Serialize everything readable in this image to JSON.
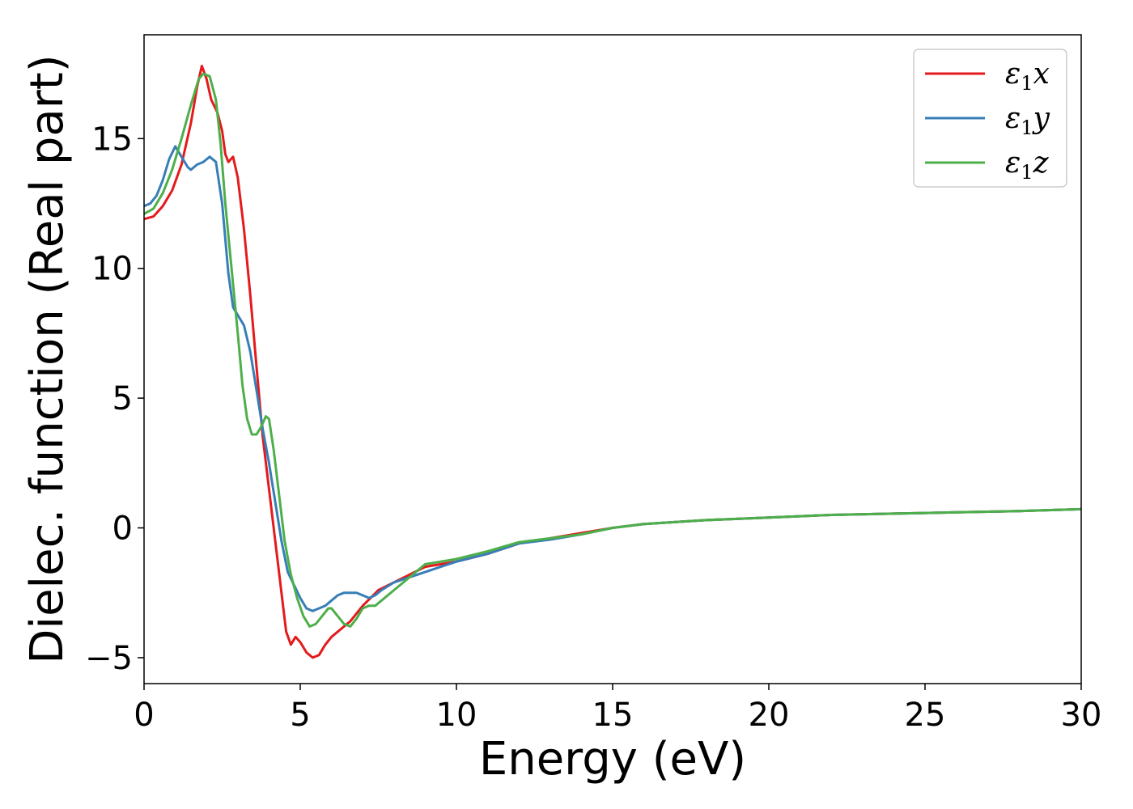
{
  "chart_data": {
    "type": "line",
    "xlabel": "Energy (eV)",
    "ylabel": "Dielec. function (Real part)",
    "xlim": [
      0,
      30
    ],
    "ylim": [
      -6,
      19
    ],
    "xticks": [
      0,
      5,
      10,
      15,
      20,
      25,
      30
    ],
    "yticks": [
      -5,
      0,
      5,
      10,
      15
    ],
    "xtick_labels": [
      "0",
      "5",
      "10",
      "15",
      "20",
      "25",
      "30"
    ],
    "ytick_labels": [
      "−5",
      "0",
      "5",
      "10",
      "15"
    ],
    "grid": false,
    "legend_position": "top-right",
    "series": [
      {
        "name": "ε₁x",
        "legend_base": "ε",
        "legend_sub": "1",
        "legend_tail": "x",
        "color": "#e41a1c",
        "points": [
          [
            0,
            11.9
          ],
          [
            0.3,
            12.0
          ],
          [
            0.6,
            12.4
          ],
          [
            0.9,
            13.0
          ],
          [
            1.2,
            14.0
          ],
          [
            1.5,
            15.6
          ],
          [
            1.7,
            17.0
          ],
          [
            1.85,
            17.8
          ],
          [
            2.0,
            17.3
          ],
          [
            2.15,
            16.5
          ],
          [
            2.35,
            16.0
          ],
          [
            2.5,
            15.3
          ],
          [
            2.6,
            14.4
          ],
          [
            2.7,
            14.1
          ],
          [
            2.85,
            14.3
          ],
          [
            3.0,
            13.5
          ],
          [
            3.2,
            11.5
          ],
          [
            3.4,
            9.0
          ],
          [
            3.6,
            6.2
          ],
          [
            3.8,
            3.5
          ],
          [
            4.0,
            1.5
          ],
          [
            4.2,
            -0.5
          ],
          [
            4.4,
            -2.5
          ],
          [
            4.55,
            -4.0
          ],
          [
            4.7,
            -4.5
          ],
          [
            4.85,
            -4.2
          ],
          [
            5.0,
            -4.4
          ],
          [
            5.2,
            -4.8
          ],
          [
            5.4,
            -5.0
          ],
          [
            5.6,
            -4.9
          ],
          [
            5.8,
            -4.5
          ],
          [
            6.0,
            -4.2
          ],
          [
            6.3,
            -3.9
          ],
          [
            6.6,
            -3.6
          ],
          [
            7.0,
            -3.0
          ],
          [
            7.5,
            -2.4
          ],
          [
            8.0,
            -2.1
          ],
          [
            8.5,
            -1.8
          ],
          [
            9.0,
            -1.5
          ],
          [
            9.5,
            -1.4
          ],
          [
            10,
            -1.3
          ],
          [
            11,
            -1.0
          ],
          [
            12,
            -0.6
          ],
          [
            13,
            -0.4
          ],
          [
            14,
            -0.2
          ],
          [
            15,
            0.0
          ],
          [
            16,
            0.15
          ],
          [
            18,
            0.3
          ],
          [
            20,
            0.4
          ],
          [
            22,
            0.5
          ],
          [
            24,
            0.55
          ],
          [
            26,
            0.6
          ],
          [
            28,
            0.65
          ],
          [
            30,
            0.72
          ]
        ]
      },
      {
        "name": "ε₁y",
        "legend_base": "ε",
        "legend_sub": "1",
        "legend_tail": "y",
        "color": "#377eb8",
        "points": [
          [
            0,
            12.4
          ],
          [
            0.2,
            12.5
          ],
          [
            0.4,
            12.8
          ],
          [
            0.6,
            13.4
          ],
          [
            0.8,
            14.2
          ],
          [
            1.0,
            14.7
          ],
          [
            1.2,
            14.3
          ],
          [
            1.4,
            13.9
          ],
          [
            1.5,
            13.8
          ],
          [
            1.7,
            14.0
          ],
          [
            1.9,
            14.1
          ],
          [
            2.1,
            14.3
          ],
          [
            2.3,
            14.1
          ],
          [
            2.5,
            12.5
          ],
          [
            2.7,
            9.8
          ],
          [
            2.85,
            8.5
          ],
          [
            3.0,
            8.2
          ],
          [
            3.2,
            7.8
          ],
          [
            3.4,
            6.8
          ],
          [
            3.6,
            5.3
          ],
          [
            3.8,
            3.8
          ],
          [
            4.0,
            2.5
          ],
          [
            4.2,
            1.0
          ],
          [
            4.4,
            -0.5
          ],
          [
            4.6,
            -1.7
          ],
          [
            4.8,
            -2.2
          ],
          [
            5.0,
            -2.7
          ],
          [
            5.2,
            -3.1
          ],
          [
            5.4,
            -3.2
          ],
          [
            5.6,
            -3.1
          ],
          [
            5.8,
            -3.0
          ],
          [
            6.0,
            -2.8
          ],
          [
            6.2,
            -2.6
          ],
          [
            6.4,
            -2.5
          ],
          [
            6.8,
            -2.5
          ],
          [
            7.0,
            -2.6
          ],
          [
            7.2,
            -2.7
          ],
          [
            7.4,
            -2.6
          ],
          [
            7.6,
            -2.4
          ],
          [
            8.0,
            -2.1
          ],
          [
            8.5,
            -1.9
          ],
          [
            9.0,
            -1.7
          ],
          [
            9.5,
            -1.5
          ],
          [
            10,
            -1.3
          ],
          [
            11,
            -1.0
          ],
          [
            12,
            -0.6
          ],
          [
            13,
            -0.45
          ],
          [
            14,
            -0.25
          ],
          [
            15,
            0.0
          ],
          [
            16,
            0.15
          ],
          [
            18,
            0.3
          ],
          [
            20,
            0.4
          ],
          [
            22,
            0.5
          ],
          [
            24,
            0.55
          ],
          [
            26,
            0.6
          ],
          [
            28,
            0.65
          ],
          [
            30,
            0.72
          ]
        ]
      },
      {
        "name": "ε₁z",
        "legend_base": "ε",
        "legend_sub": "1",
        "legend_tail": "z",
        "color": "#4daf4a",
        "points": [
          [
            0,
            12.1
          ],
          [
            0.3,
            12.3
          ],
          [
            0.6,
            12.9
          ],
          [
            0.9,
            13.8
          ],
          [
            1.2,
            15.0
          ],
          [
            1.5,
            16.3
          ],
          [
            1.75,
            17.3
          ],
          [
            1.9,
            17.5
          ],
          [
            2.1,
            17.4
          ],
          [
            2.3,
            16.5
          ],
          [
            2.45,
            14.8
          ],
          [
            2.6,
            12.5
          ],
          [
            2.8,
            10.0
          ],
          [
            3.0,
            7.5
          ],
          [
            3.15,
            5.5
          ],
          [
            3.3,
            4.2
          ],
          [
            3.45,
            3.6
          ],
          [
            3.6,
            3.6
          ],
          [
            3.75,
            3.9
          ],
          [
            3.9,
            4.3
          ],
          [
            4.0,
            4.2
          ],
          [
            4.15,
            3.0
          ],
          [
            4.3,
            1.5
          ],
          [
            4.5,
            -0.5
          ],
          [
            4.7,
            -1.8
          ],
          [
            4.9,
            -2.7
          ],
          [
            5.1,
            -3.4
          ],
          [
            5.3,
            -3.8
          ],
          [
            5.5,
            -3.7
          ],
          [
            5.7,
            -3.4
          ],
          [
            5.9,
            -3.1
          ],
          [
            6.0,
            -3.1
          ],
          [
            6.2,
            -3.4
          ],
          [
            6.4,
            -3.7
          ],
          [
            6.6,
            -3.8
          ],
          [
            6.8,
            -3.5
          ],
          [
            7.0,
            -3.1
          ],
          [
            7.2,
            -3.0
          ],
          [
            7.4,
            -3.0
          ],
          [
            7.6,
            -2.8
          ],
          [
            8.0,
            -2.4
          ],
          [
            8.5,
            -1.9
          ],
          [
            9.0,
            -1.4
          ],
          [
            9.5,
            -1.3
          ],
          [
            10,
            -1.2
          ],
          [
            11,
            -0.9
          ],
          [
            12,
            -0.55
          ],
          [
            13,
            -0.4
          ],
          [
            14,
            -0.25
          ],
          [
            15,
            0.0
          ],
          [
            16,
            0.15
          ],
          [
            18,
            0.3
          ],
          [
            20,
            0.4
          ],
          [
            22,
            0.5
          ],
          [
            24,
            0.55
          ],
          [
            26,
            0.6
          ],
          [
            28,
            0.65
          ],
          [
            30,
            0.72
          ]
        ]
      }
    ]
  }
}
